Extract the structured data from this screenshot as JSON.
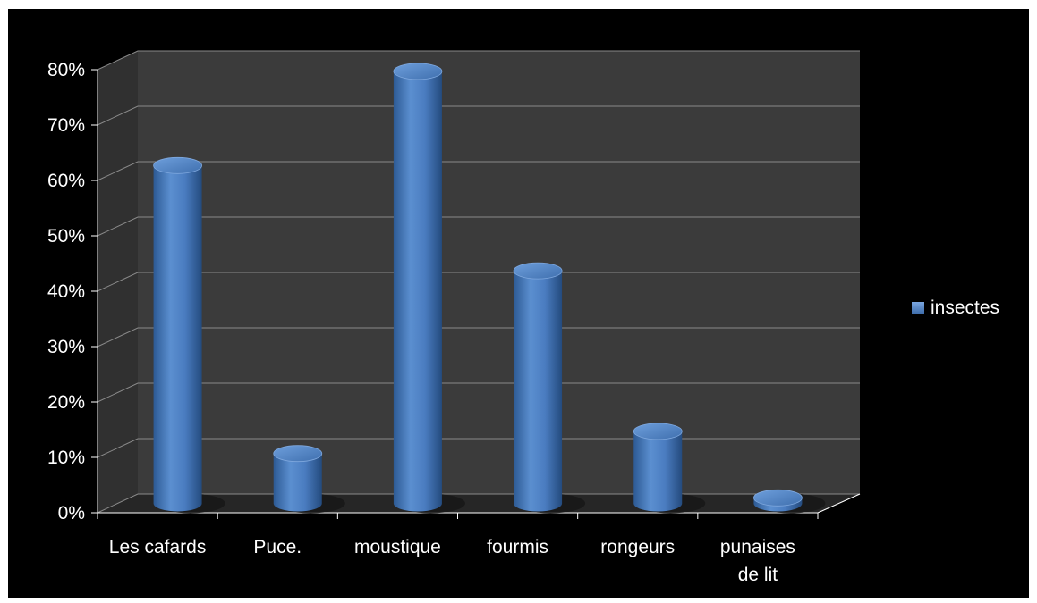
{
  "chart_data": {
    "type": "bar",
    "style": "3d-cylinder",
    "categories": [
      "Les cafards",
      "Puce.",
      "moustique",
      "fourmis",
      "rongeurs",
      "punaises de lit"
    ],
    "category_lines": [
      [
        "Les cafards"
      ],
      [
        "Puce."
      ],
      [
        "moustique"
      ],
      [
        "fourmis"
      ],
      [
        "rongeurs"
      ],
      [
        "punaises",
        "de lit"
      ]
    ],
    "series": [
      {
        "name": "insectes",
        "values": [
          0.61,
          0.09,
          0.78,
          0.42,
          0.13,
          0.01
        ],
        "color": "#4f81bd"
      }
    ],
    "y_ticks": [
      "0%",
      "10%",
      "20%",
      "30%",
      "40%",
      "50%",
      "60%",
      "70%",
      "80%"
    ],
    "ylim": [
      0,
      0.8
    ],
    "grid": true,
    "legend_position": "right",
    "background": "#000000",
    "wall_color": "#3b3b3b"
  }
}
